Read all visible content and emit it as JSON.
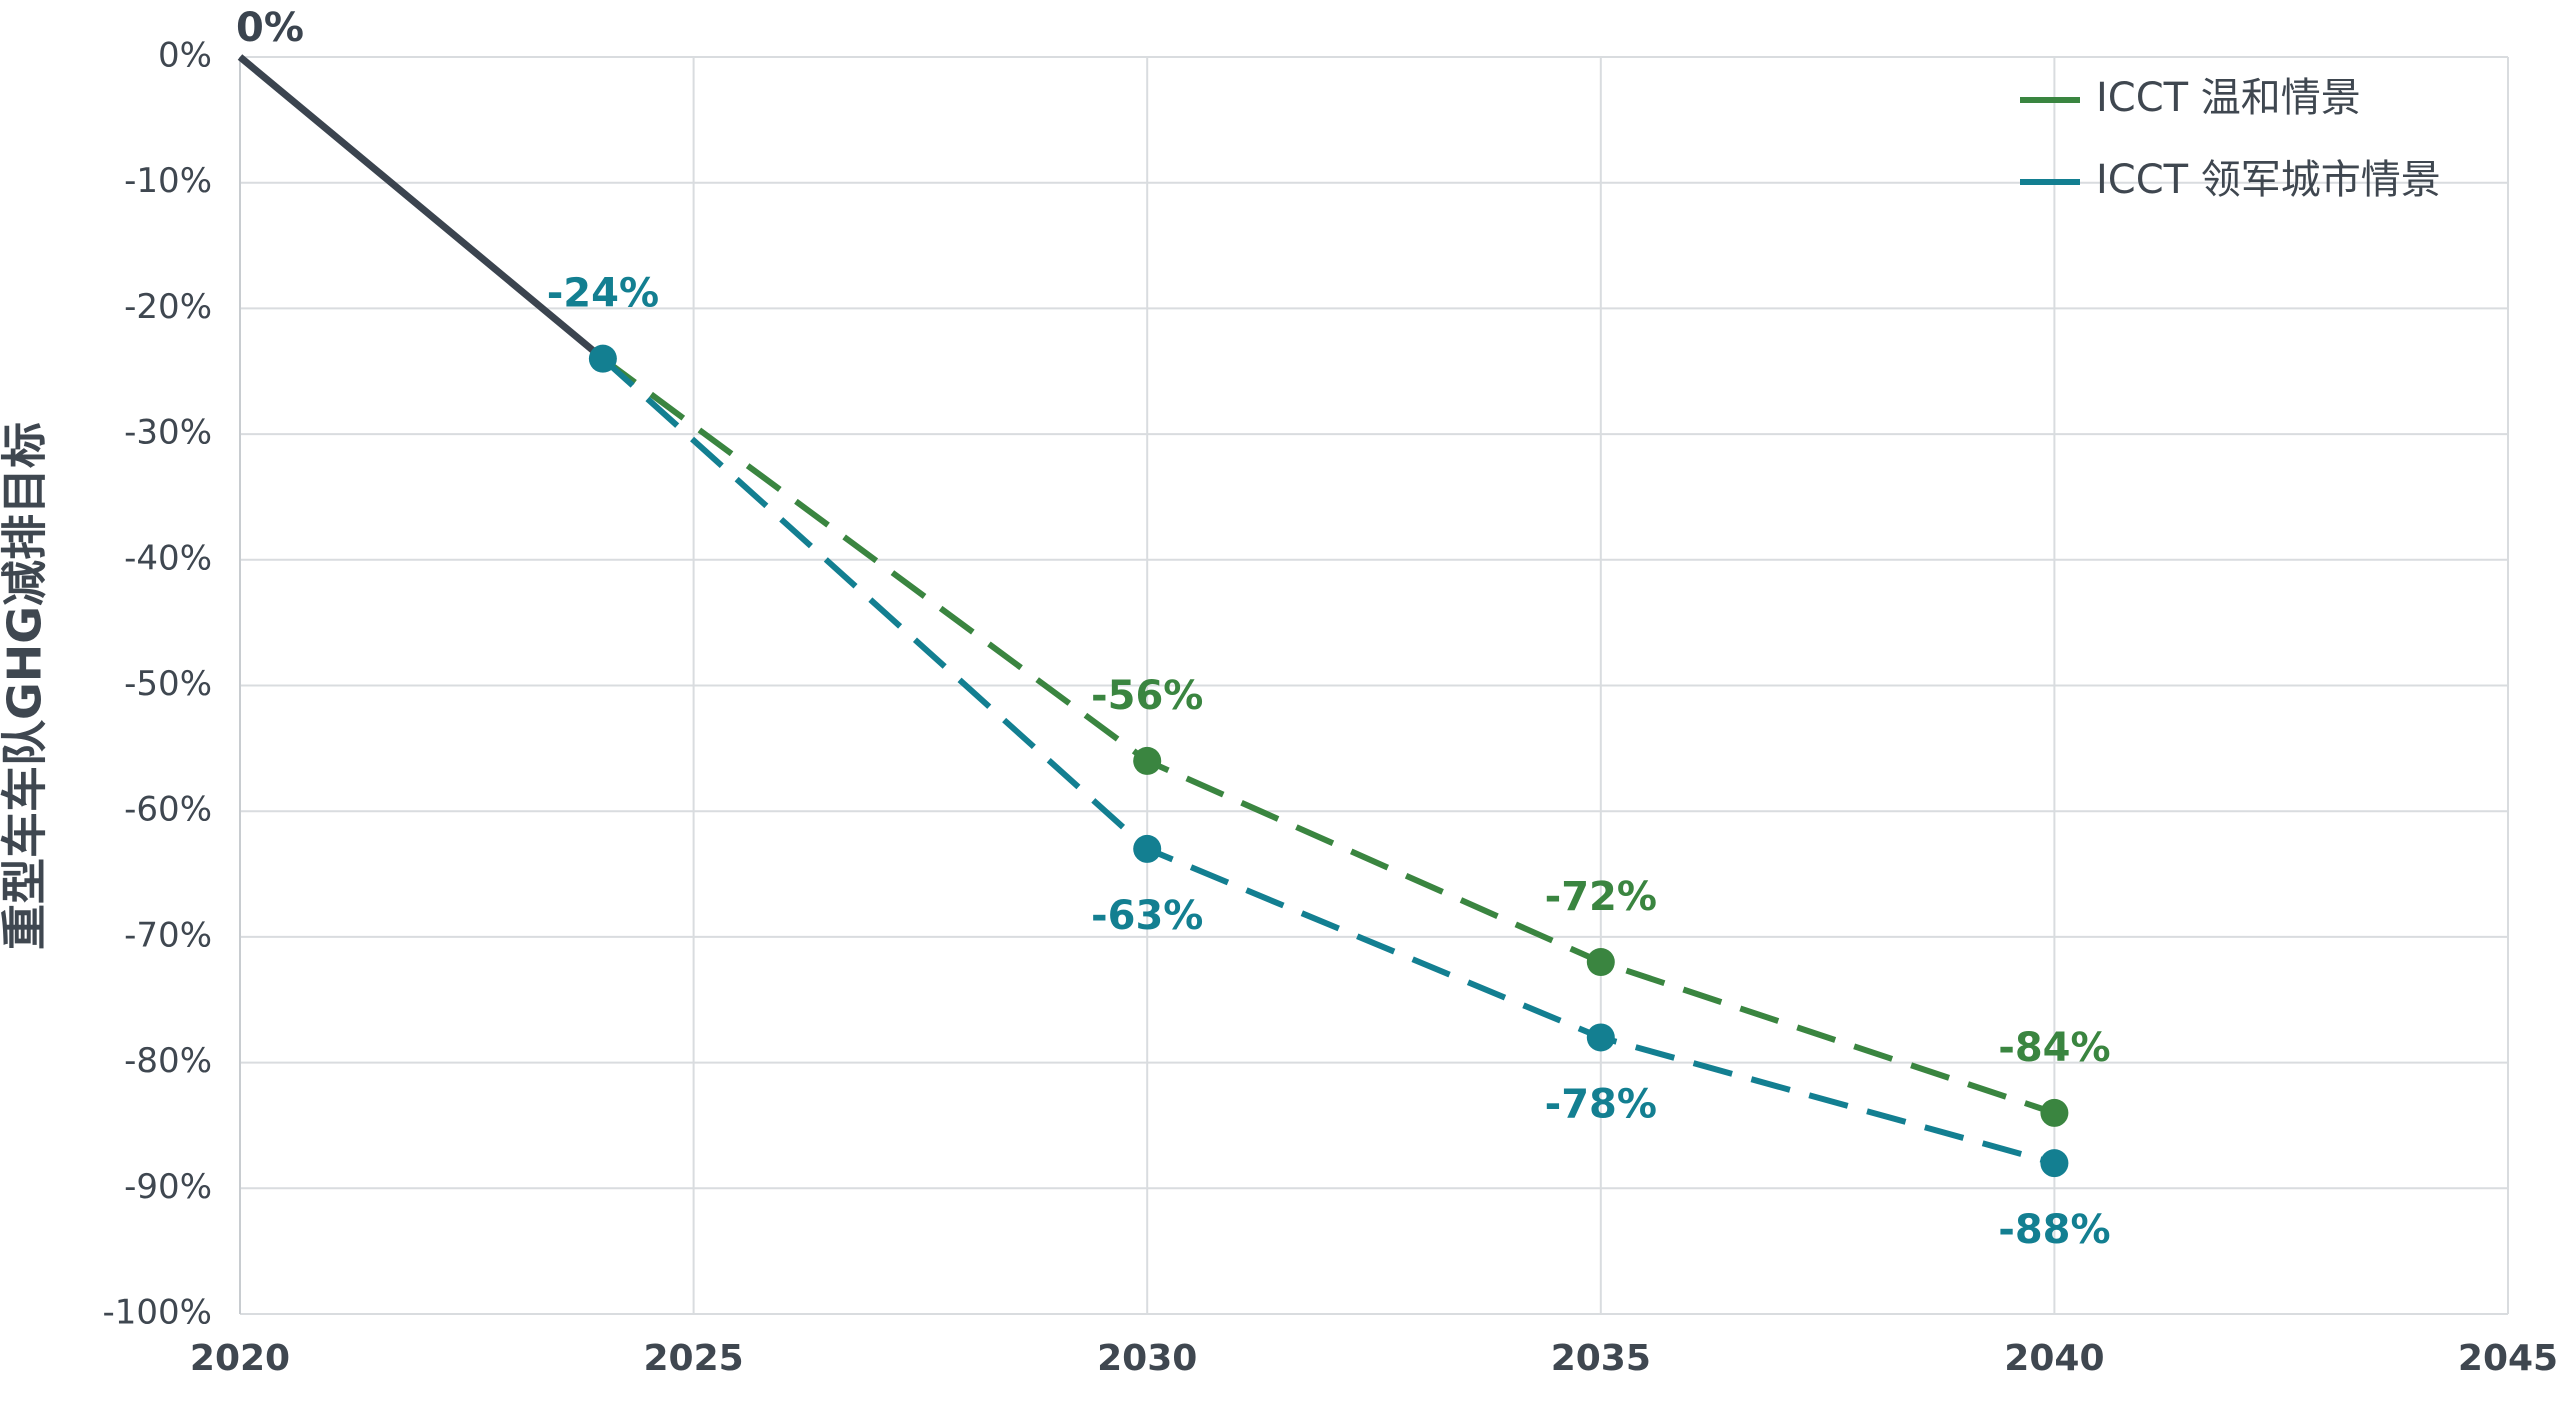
{
  "chart_data": {
    "type": "line",
    "title": "",
    "xlabel": "",
    "ylabel": "重型车车队GHG减排目标",
    "xlim": [
      2020,
      2045
    ],
    "ylim": [
      -100,
      0
    ],
    "x_ticks": [
      2020,
      2025,
      2030,
      2035,
      2040,
      2045
    ],
    "x_tick_labels": [
      "2020",
      "2025",
      "2030",
      "2035",
      "2040",
      "2045"
    ],
    "y_ticks": [
      0,
      -10,
      -20,
      -30,
      -40,
      -50,
      -60,
      -70,
      -80,
      -90,
      -100
    ],
    "y_tick_labels": [
      "0%",
      "-10%",
      "-20%",
      "-30%",
      "-40%",
      "-50%",
      "-60%",
      "-70%",
      "-80%",
      "-90%",
      "-100%"
    ],
    "grid": true,
    "legend_position": "top-right",
    "colors": {
      "historical": "#3b444f",
      "moderate": "#3a8540",
      "leading": "#137f91",
      "text": "#3f4750",
      "grid": "#d9dcdf"
    },
    "series": [
      {
        "key": "historical",
        "style": "solid",
        "points": [
          {
            "x": 2020,
            "y": 0
          },
          {
            "x": 2024,
            "y": -24
          }
        ]
      },
      {
        "key": "moderate",
        "name": "ICCT 温和情景",
        "style": "dashed",
        "points": [
          {
            "x": 2024,
            "y": -24
          },
          {
            "x": 2030,
            "y": -56
          },
          {
            "x": 2035,
            "y": -72
          },
          {
            "x": 2040,
            "y": -84
          }
        ]
      },
      {
        "key": "leading",
        "name": "ICCT 领军城市情景",
        "style": "dashed",
        "points": [
          {
            "x": 2024,
            "y": -24
          },
          {
            "x": 2030,
            "y": -63
          },
          {
            "x": 2035,
            "y": -78
          },
          {
            "x": 2040,
            "y": -88
          }
        ]
      }
    ],
    "markers": [
      {
        "key": "leading",
        "x": 2024,
        "y": -24
      },
      {
        "key": "moderate",
        "x": 2030,
        "y": -56
      },
      {
        "key": "leading",
        "x": 2030,
        "y": -63
      },
      {
        "key": "moderate",
        "x": 2035,
        "y": -72
      },
      {
        "key": "leading",
        "x": 2035,
        "y": -78
      },
      {
        "key": "moderate",
        "x": 2040,
        "y": -84
      },
      {
        "key": "leading",
        "x": 2040,
        "y": -88
      }
    ],
    "annotations": [
      {
        "text": "0%",
        "key": "historical",
        "x": 2020,
        "y": 0,
        "placement": "above-right"
      },
      {
        "text": "-24%",
        "key": "leading",
        "x": 2024,
        "y": -24,
        "placement": "above"
      },
      {
        "text": "-56%",
        "key": "moderate",
        "x": 2030,
        "y": -56,
        "placement": "above"
      },
      {
        "text": "-63%",
        "key": "leading",
        "x": 2030,
        "y": -63,
        "placement": "below"
      },
      {
        "text": "-72%",
        "key": "moderate",
        "x": 2035,
        "y": -72,
        "placement": "above"
      },
      {
        "text": "-78%",
        "key": "leading",
        "x": 2035,
        "y": -78,
        "placement": "below"
      },
      {
        "text": "-84%",
        "key": "moderate",
        "x": 2040,
        "y": -84,
        "placement": "above"
      },
      {
        "text": "-88%",
        "key": "leading",
        "x": 2040,
        "y": -88,
        "placement": "below"
      }
    ],
    "legend": [
      {
        "key": "moderate",
        "label": "ICCT 温和情景"
      },
      {
        "key": "leading",
        "label": "ICCT 领军城市情景"
      }
    ]
  }
}
